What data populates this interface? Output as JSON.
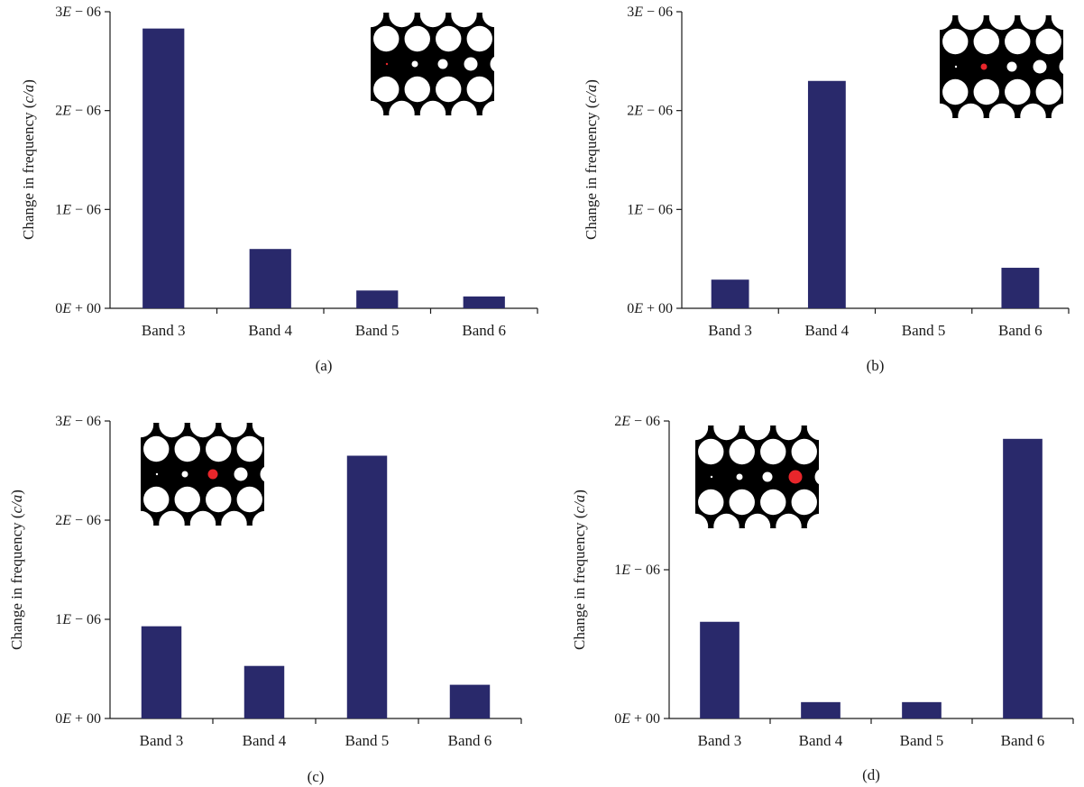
{
  "chart_data": [
    {
      "type": "bar",
      "panel_label": "(a)",
      "categories": [
        "Band 3",
        "Band 4",
        "Band 5",
        "Band 6"
      ],
      "values": [
        2.83e-06,
        6e-07,
        1.8e-07,
        1.2e-07
      ],
      "ylabel_prefix": "Change in frequency (",
      "ylabel_unit": "c/a",
      "ylabel_suffix": ")",
      "ylim": [
        0,
        3e-06
      ],
      "yticks": [
        {
          "value": 0,
          "mant": "0",
          "exp": "+ 00"
        },
        {
          "value": 1e-06,
          "mant": "1",
          "exp": "− 06"
        },
        {
          "value": 2e-06,
          "mant": "2",
          "exp": "− 06"
        },
        {
          "value": 3e-06,
          "mant": "3",
          "exp": "− 06"
        }
      ],
      "inset": {
        "highlighted_hole": 1,
        "corner": "top-right"
      }
    },
    {
      "type": "bar",
      "panel_label": "(b)",
      "categories": [
        "Band 3",
        "Band 4",
        "Band 5",
        "Band 6"
      ],
      "values": [
        2.9e-07,
        2.3e-06,
        0,
        4.1e-07
      ],
      "ylabel_prefix": "Change in frequency (",
      "ylabel_unit": "c/a",
      "ylabel_suffix": ")",
      "ylim": [
        0,
        3e-06
      ],
      "yticks": [
        {
          "value": 0,
          "mant": "0",
          "exp": "+ 00"
        },
        {
          "value": 1e-06,
          "mant": "1",
          "exp": "− 06"
        },
        {
          "value": 2e-06,
          "mant": "2",
          "exp": "− 06"
        },
        {
          "value": 3e-06,
          "mant": "3",
          "exp": "− 06"
        }
      ],
      "inset": {
        "highlighted_hole": 2,
        "corner": "top-right"
      }
    },
    {
      "type": "bar",
      "panel_label": "(c)",
      "categories": [
        "Band 3",
        "Band 4",
        "Band 5",
        "Band 6"
      ],
      "values": [
        9.3e-07,
        5.3e-07,
        2.65e-06,
        3.4e-07
      ],
      "ylabel_prefix": "Change in frequency (",
      "ylabel_unit": "c/a",
      "ylabel_suffix": ")",
      "ylim": [
        0,
        3e-06
      ],
      "yticks": [
        {
          "value": 0,
          "mant": "0",
          "exp": "+ 00"
        },
        {
          "value": 1e-06,
          "mant": "1",
          "exp": "− 06"
        },
        {
          "value": 2e-06,
          "mant": "2",
          "exp": "− 06"
        },
        {
          "value": 3e-06,
          "mant": "3",
          "exp": "− 06"
        }
      ],
      "inset": {
        "highlighted_hole": 3,
        "corner": "top-left"
      }
    },
    {
      "type": "bar",
      "panel_label": "(d)",
      "categories": [
        "Band 3",
        "Band 4",
        "Band 5",
        "Band 6"
      ],
      "values": [
        6.5e-07,
        1.1e-07,
        1.1e-07,
        1.88e-06
      ],
      "ylabel_prefix": "Change in frequency (",
      "ylabel_unit": "c/a",
      "ylabel_suffix": ")",
      "ylim": [
        0,
        2e-06
      ],
      "yticks": [
        {
          "value": 0,
          "mant": "0",
          "exp": "+ 00"
        },
        {
          "value": 1e-06,
          "mant": "1",
          "exp": "− 06"
        },
        {
          "value": 2e-06,
          "mant": "2",
          "exp": "− 06"
        }
      ],
      "inset": {
        "highlighted_hole": 4,
        "corner": "top-left"
      }
    }
  ],
  "colors": {
    "bar": "#29296b",
    "axis": "#1a1a1a",
    "inset_background": "#000000",
    "inset_hole": "#ffffff",
    "inset_highlight": "#e8262b"
  }
}
